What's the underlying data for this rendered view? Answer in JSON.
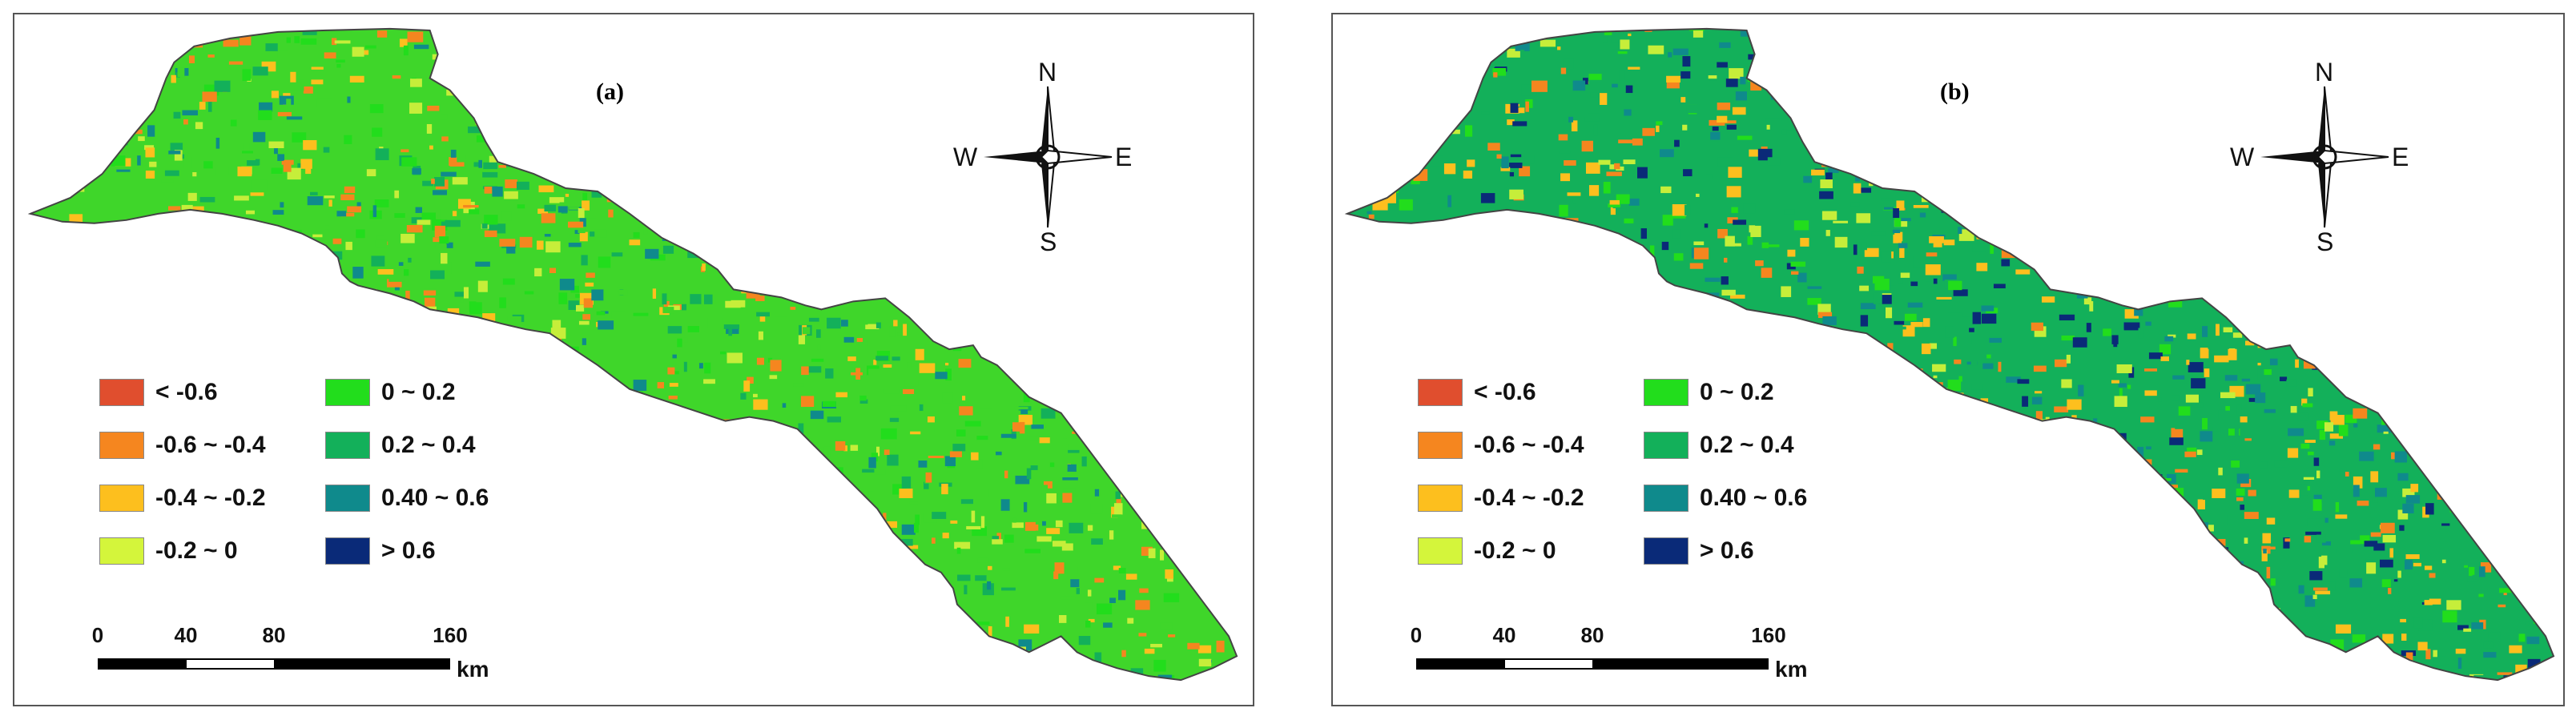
{
  "panels": [
    {
      "label": "(a)"
    },
    {
      "label": "(b)"
    }
  ],
  "legend": [
    {
      "label": "< -0.6",
      "color": "#e04e2e"
    },
    {
      "label": "-0.6 ~ -0.4",
      "color": "#f5861f"
    },
    {
      "label": "-0.4 ~ -0.2",
      "color": "#fdbf1e"
    },
    {
      "label": "-0.2 ~ 0",
      "color": "#d4f53b"
    },
    {
      "label": "0 ~ 0.2",
      "color": "#22dd1c"
    },
    {
      "label": "0.2 ~ 0.4",
      "color": "#13b05a"
    },
    {
      "label": "0.40 ~ 0.6",
      "color": "#0f8a8c"
    },
    {
      "label": "> 0.6",
      "color": "#0a2a78"
    }
  ],
  "scale": {
    "ticks": [
      "0",
      "40",
      "80",
      "160"
    ],
    "tick_values": [
      0,
      40,
      80,
      160
    ],
    "unit": "km"
  },
  "compass": {
    "n": "N",
    "s": "S",
    "e": "E",
    "w": "W"
  },
  "palette": {
    "a_dominant": [
      "#3fd62a",
      "#c6ee3a",
      "#22dd1c",
      "#f5861f",
      "#fdbf1e",
      "#13b05a",
      "#0f8a8c"
    ],
    "b_dominant": [
      "#0f8a8c",
      "#0a2a78",
      "#13b05a",
      "#c6ee3a",
      "#fdbf1e",
      "#f5861f",
      "#22dd1c"
    ]
  }
}
